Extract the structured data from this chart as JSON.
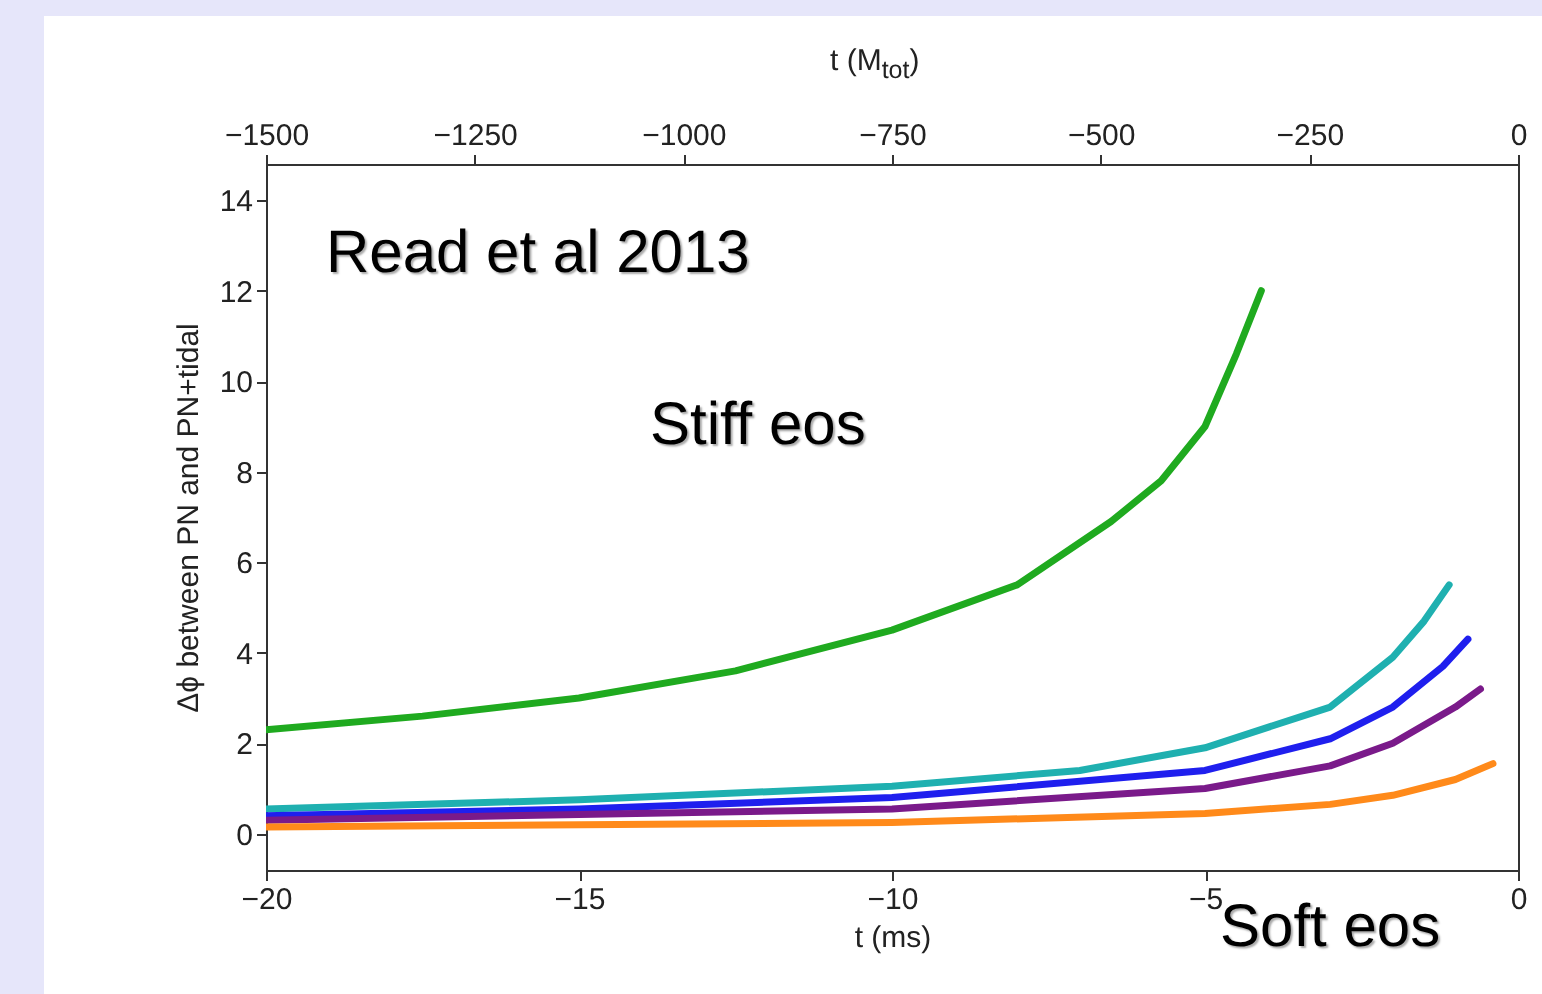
{
  "chart_data": {
    "type": "line",
    "xlabel": "t (ms)",
    "x2label": "t (M$_{tot}$)",
    "ylabel": "Δϕ between PN and PN+tidal",
    "xlim": [
      -20,
      0
    ],
    "xticks": [
      -20,
      -15,
      -10,
      -5,
      0
    ],
    "x2lim": [
      -1500,
      0
    ],
    "x2ticks": [
      -1500,
      -1250,
      -1000,
      -750,
      -500,
      -250,
      0
    ],
    "ylim": [
      -0.8,
      14.8
    ],
    "yticks": [
      0,
      2,
      4,
      6,
      8,
      10,
      12,
      14
    ],
    "grid": false,
    "legend": false,
    "line_style": "solid",
    "marker": "none",
    "annotations": [
      "Read et al 2013",
      "Stiff eos",
      "Soft eos"
    ],
    "series": [
      {
        "color": "#1faa1f",
        "x": [
          -20,
          -17.5,
          -15,
          -12.5,
          -10,
          -8,
          -6.5,
          -5.7,
          -5,
          -4.5,
          -4.1
        ],
        "values": [
          2.3,
          2.6,
          3.0,
          3.6,
          4.5,
          5.5,
          6.9,
          7.8,
          9.0,
          10.6,
          12.0
        ]
      },
      {
        "color": "#1fb0b0",
        "x": [
          -20,
          -15,
          -10,
          -7,
          -5,
          -3,
          -2,
          -1.5,
          -1.1
        ],
        "values": [
          0.55,
          0.75,
          1.05,
          1.4,
          1.9,
          2.8,
          3.9,
          4.7,
          5.5
        ]
      },
      {
        "color": "#1f1fee",
        "x": [
          -20,
          -15,
          -10,
          -5,
          -3,
          -2,
          -1.2,
          -0.8
        ],
        "values": [
          0.4,
          0.55,
          0.8,
          1.4,
          2.1,
          2.8,
          3.7,
          4.3
        ]
      },
      {
        "color": "#7a1a8a",
        "x": [
          -20,
          -10,
          -5,
          -3,
          -2,
          -1,
          -0.6
        ],
        "values": [
          0.3,
          0.55,
          1.0,
          1.5,
          2.0,
          2.8,
          3.2
        ]
      },
      {
        "color": "#ff8a1a",
        "x": [
          -20,
          -10,
          -5,
          -3,
          -2,
          -1,
          -0.4
        ],
        "values": [
          0.15,
          0.25,
          0.45,
          0.65,
          0.85,
          1.2,
          1.55
        ]
      }
    ]
  }
}
